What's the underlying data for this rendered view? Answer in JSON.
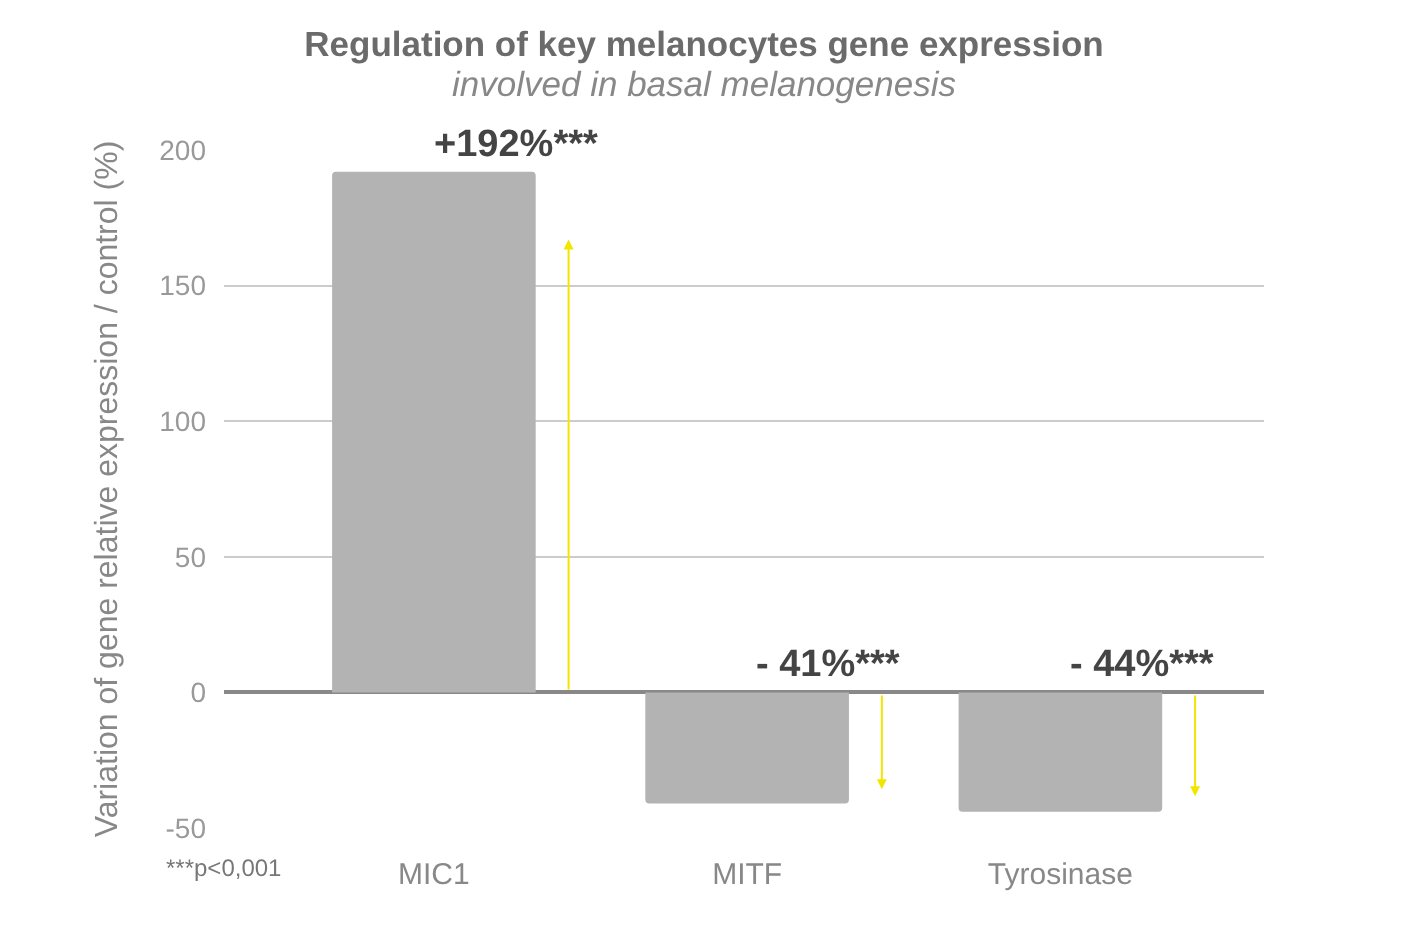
{
  "chart_data": {
    "type": "bar",
    "title": "Regulation of key melanocytes gene expression",
    "subtitle": "involved in basal melanogenesis",
    "ylabel": "Variation of gene relative expression / control (%)",
    "categories": [
      "MIC1",
      "MITF",
      "Tyrosinase"
    ],
    "values": [
      192,
      -41,
      -44
    ],
    "color": "#b3b3b3",
    "value_labels": [
      "+192%***",
      "- 41%***",
      "- 44%***"
    ],
    "ylim": [
      -50,
      200
    ],
    "yticks": [
      -50,
      0,
      50,
      100,
      150,
      200
    ],
    "grid": "y",
    "annotations": [
      "***p<0,001"
    ]
  }
}
